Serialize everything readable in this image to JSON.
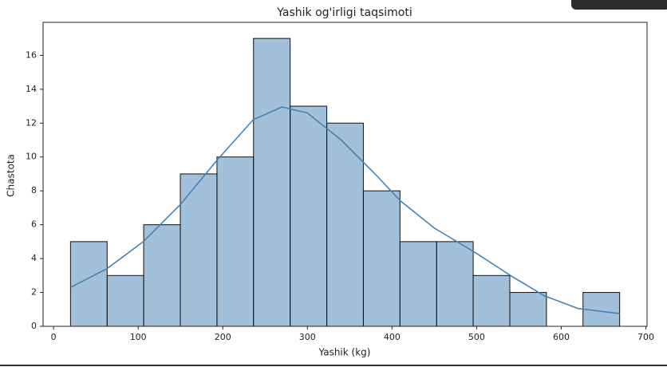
{
  "chart_data": {
    "type": "histogram",
    "title": "Yashik og'irligi taqsimoti",
    "x_label": "Yashik (kg)",
    "y_label": "Chastota",
    "bins": [
      20,
      63.3,
      106.5,
      149.8,
      193.1,
      236.3,
      279.6,
      322.9,
      366.1,
      409.4,
      452.7,
      495.9,
      539.2,
      582.5,
      625.7,
      669
    ],
    "values": [
      5,
      3,
      6,
      9,
      10,
      17,
      13,
      12,
      8,
      5,
      5,
      3,
      2,
      0,
      2
    ],
    "color": "#4682b4",
    "kde": {
      "x": [
        20,
        63,
        106,
        150,
        193,
        236,
        270,
        300,
        340,
        380,
        410,
        450,
        500,
        540,
        580,
        620,
        669
      ],
      "y": [
        2.3,
        3.4,
        5.0,
        7.2,
        9.8,
        12.2,
        12.95,
        12.6,
        11.0,
        9.0,
        7.4,
        5.8,
        4.3,
        3.0,
        1.8,
        1.05,
        0.75
      ]
    },
    "xlim": [
      -12.4,
      701.4
    ],
    "ylim": [
      0,
      17.95
    ],
    "xticks": [
      0,
      100,
      200,
      300,
      400,
      500,
      600,
      700
    ],
    "yticks": [
      0,
      2,
      4,
      6,
      8,
      10,
      12,
      14,
      16
    ],
    "grid": false
  }
}
